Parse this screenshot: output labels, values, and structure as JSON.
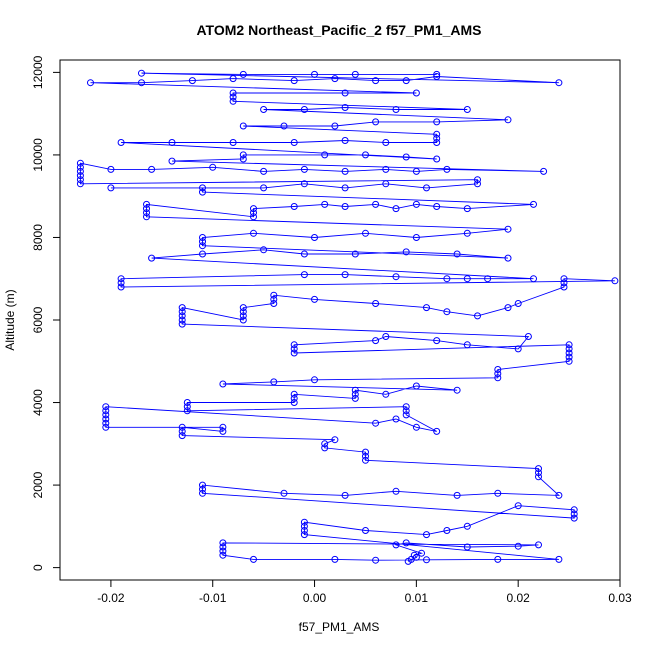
{
  "chart_data": {
    "type": "scatter",
    "title": "ATOM2 Northeast_Pacific_2 f57_PM1_AMS",
    "xlabel": "f57_PM1_AMS",
    "ylabel": "Altitude (m)",
    "xlim": [
      -0.025,
      0.03
    ],
    "ylim": [
      -300,
      12300
    ],
    "x_ticks": [
      -0.02,
      -0.01,
      0.0,
      0.01,
      0.02,
      0.03
    ],
    "x_tick_labels": [
      "-0.02",
      "-0.01",
      "0.00",
      "0.01",
      "0.02",
      "0.03"
    ],
    "y_ticks": [
      0,
      2000,
      4000,
      6000,
      8000,
      10000,
      12000
    ],
    "y_tick_labels": [
      "0",
      "2000",
      "4000",
      "6000",
      "8000",
      "10000",
      "12000"
    ],
    "grid": false,
    "marker": "open-circle",
    "color": "#0000ff",
    "series": [
      {
        "values": [
          [
            0.0092,
            150
          ],
          [
            0.0095,
            200
          ],
          [
            0.01,
            250
          ],
          [
            0.0098,
            300
          ],
          [
            0.0105,
            350
          ],
          [
            0.008,
            550
          ],
          [
            0.009,
            600
          ],
          [
            0.015,
            500
          ],
          [
            0.02,
            520
          ],
          [
            0.022,
            550
          ],
          [
            -0.009,
            600
          ],
          [
            -0.009,
            500
          ],
          [
            -0.009,
            400
          ],
          [
            -0.009,
            300
          ],
          [
            -0.006,
            200
          ],
          [
            0.002,
            200
          ],
          [
            0.006,
            180
          ],
          [
            0.011,
            190
          ],
          [
            0.018,
            200
          ],
          [
            0.024,
            200
          ],
          [
            -0.001,
            800
          ],
          [
            -0.001,
            900
          ],
          [
            -0.001,
            1000
          ],
          [
            -0.001,
            1100
          ],
          [
            0.005,
            900
          ],
          [
            0.011,
            800
          ],
          [
            0.013,
            900
          ],
          [
            0.015,
            1000
          ],
          [
            0.02,
            1500
          ],
          [
            0.0255,
            1400
          ],
          [
            0.0255,
            1300
          ],
          [
            0.0255,
            1200
          ],
          [
            -0.011,
            1800
          ],
          [
            -0.011,
            1900
          ],
          [
            -0.011,
            2000
          ],
          [
            -0.003,
            1800
          ],
          [
            0.003,
            1750
          ],
          [
            0.008,
            1850
          ],
          [
            0.014,
            1750
          ],
          [
            0.018,
            1800
          ],
          [
            0.024,
            1750
          ],
          [
            0.022,
            2200
          ],
          [
            0.022,
            2300
          ],
          [
            0.022,
            2400
          ],
          [
            0.005,
            2600
          ],
          [
            0.005,
            2700
          ],
          [
            0.005,
            2800
          ],
          [
            0.001,
            2900
          ],
          [
            0.001,
            3000
          ],
          [
            0.002,
            3100
          ],
          [
            -0.013,
            3200
          ],
          [
            -0.013,
            3300
          ],
          [
            -0.013,
            3400
          ],
          [
            -0.009,
            3300
          ],
          [
            -0.009,
            3400
          ],
          [
            -0.0205,
            3400
          ],
          [
            -0.0205,
            3500
          ],
          [
            -0.0205,
            3600
          ],
          [
            -0.0205,
            3700
          ],
          [
            -0.0205,
            3800
          ],
          [
            -0.0205,
            3900
          ],
          [
            0.006,
            3500
          ],
          [
            0.008,
            3600
          ],
          [
            0.01,
            3400
          ],
          [
            0.012,
            3300
          ],
          [
            0.009,
            3700
          ],
          [
            0.009,
            3800
          ],
          [
            0.009,
            3900
          ],
          [
            -0.0125,
            3800
          ],
          [
            -0.0125,
            3900
          ],
          [
            -0.0125,
            4000
          ],
          [
            -0.002,
            4000
          ],
          [
            -0.002,
            4100
          ],
          [
            -0.002,
            4200
          ],
          [
            0.004,
            4100
          ],
          [
            0.004,
            4200
          ],
          [
            0.004,
            4300
          ],
          [
            0.007,
            4200
          ],
          [
            0.01,
            4400
          ],
          [
            0.014,
            4300
          ],
          [
            -0.009,
            4450
          ],
          [
            -0.004,
            4500
          ],
          [
            0.0,
            4550
          ],
          [
            0.018,
            4600
          ],
          [
            0.018,
            4700
          ],
          [
            0.018,
            4800
          ],
          [
            0.025,
            5000
          ],
          [
            0.025,
            5100
          ],
          [
            0.025,
            5200
          ],
          [
            0.025,
            5300
          ],
          [
            0.025,
            5400
          ],
          [
            -0.002,
            5200
          ],
          [
            -0.002,
            5300
          ],
          [
            -0.002,
            5400
          ],
          [
            0.006,
            5500
          ],
          [
            0.007,
            5600
          ],
          [
            0.012,
            5500
          ],
          [
            0.015,
            5400
          ],
          [
            0.02,
            5300
          ],
          [
            0.021,
            5600
          ],
          [
            -0.013,
            5900
          ],
          [
            -0.013,
            6000
          ],
          [
            -0.013,
            6100
          ],
          [
            -0.013,
            6200
          ],
          [
            -0.013,
            6300
          ],
          [
            -0.007,
            6000
          ],
          [
            -0.007,
            6100
          ],
          [
            -0.007,
            6200
          ],
          [
            -0.007,
            6300
          ],
          [
            -0.004,
            6400
          ],
          [
            -0.004,
            6500
          ],
          [
            -0.004,
            6600
          ],
          [
            0.0,
            6500
          ],
          [
            0.006,
            6400
          ],
          [
            0.011,
            6300
          ],
          [
            0.013,
            6200
          ],
          [
            0.016,
            6100
          ],
          [
            0.019,
            6300
          ],
          [
            0.02,
            6400
          ],
          [
            0.0245,
            6800
          ],
          [
            0.0245,
            6900
          ],
          [
            0.0245,
            7000
          ],
          [
            0.0295,
            6950
          ],
          [
            -0.019,
            6800
          ],
          [
            -0.019,
            6900
          ],
          [
            -0.019,
            7000
          ],
          [
            -0.001,
            7100
          ],
          [
            0.003,
            7100
          ],
          [
            0.008,
            7050
          ],
          [
            0.013,
            7000
          ],
          [
            0.015,
            7000
          ],
          [
            0.017,
            7000
          ],
          [
            0.0215,
            7000
          ],
          [
            -0.016,
            7500
          ],
          [
            -0.011,
            7600
          ],
          [
            -0.005,
            7700
          ],
          [
            -0.001,
            7600
          ],
          [
            0.004,
            7600
          ],
          [
            0.009,
            7650
          ],
          [
            0.014,
            7600
          ],
          [
            0.019,
            7500
          ],
          [
            -0.011,
            7800
          ],
          [
            -0.011,
            7900
          ],
          [
            -0.011,
            8000
          ],
          [
            -0.006,
            8100
          ],
          [
            0.0,
            8000
          ],
          [
            0.005,
            8100
          ],
          [
            0.01,
            8000
          ],
          [
            0.015,
            8100
          ],
          [
            0.019,
            8200
          ],
          [
            -0.0165,
            8500
          ],
          [
            -0.0165,
            8600
          ],
          [
            -0.0165,
            8700
          ],
          [
            -0.0165,
            8800
          ],
          [
            -0.006,
            8500
          ],
          [
            -0.006,
            8600
          ],
          [
            -0.006,
            8700
          ],
          [
            -0.002,
            8750
          ],
          [
            0.001,
            8800
          ],
          [
            0.003,
            8750
          ],
          [
            0.006,
            8800
          ],
          [
            0.008,
            8700
          ],
          [
            0.01,
            8800
          ],
          [
            0.012,
            8750
          ],
          [
            0.015,
            8700
          ],
          [
            0.0215,
            8800
          ],
          [
            -0.011,
            9100
          ],
          [
            -0.011,
            9200
          ],
          [
            -0.02,
            9200
          ],
          [
            -0.005,
            9200
          ],
          [
            -0.001,
            9300
          ],
          [
            0.003,
            9200
          ],
          [
            0.007,
            9300
          ],
          [
            0.011,
            9200
          ],
          [
            0.016,
            9300
          ],
          [
            0.016,
            9400
          ],
          [
            -0.023,
            9300
          ],
          [
            -0.023,
            9400
          ],
          [
            -0.023,
            9500
          ],
          [
            -0.023,
            9600
          ],
          [
            -0.023,
            9700
          ],
          [
            -0.023,
            9800
          ],
          [
            -0.02,
            9650
          ],
          [
            -0.016,
            9650
          ],
          [
            -0.01,
            9700
          ],
          [
            -0.005,
            9600
          ],
          [
            -0.001,
            9650
          ],
          [
            0.003,
            9600
          ],
          [
            0.007,
            9650
          ],
          [
            0.01,
            9600
          ],
          [
            0.013,
            9650
          ],
          [
            0.0225,
            9600
          ],
          [
            -0.014,
            9850
          ],
          [
            -0.007,
            9900
          ],
          [
            -0.007,
            10000
          ],
          [
            0.001,
            10000
          ],
          [
            0.005,
            10000
          ],
          [
            0.009,
            9950
          ],
          [
            0.012,
            9900
          ],
          [
            -0.019,
            10300
          ],
          [
            -0.014,
            10300
          ],
          [
            -0.008,
            10300
          ],
          [
            -0.002,
            10300
          ],
          [
            0.003,
            10350
          ],
          [
            0.007,
            10300
          ],
          [
            0.012,
            10300
          ],
          [
            0.012,
            10400
          ],
          [
            0.012,
            10500
          ],
          [
            -0.007,
            10700
          ],
          [
            -0.003,
            10700
          ],
          [
            0.002,
            10700
          ],
          [
            0.006,
            10800
          ],
          [
            0.012,
            10800
          ],
          [
            0.019,
            10850
          ],
          [
            -0.005,
            11100
          ],
          [
            -0.001,
            11100
          ],
          [
            0.003,
            11150
          ],
          [
            0.008,
            11100
          ],
          [
            0.015,
            11100
          ],
          [
            -0.008,
            11300
          ],
          [
            -0.008,
            11400
          ],
          [
            -0.008,
            11500
          ],
          [
            0.003,
            11500
          ],
          [
            0.01,
            11500
          ],
          [
            -0.022,
            11750
          ],
          [
            -0.017,
            11750
          ],
          [
            -0.012,
            11800
          ],
          [
            -0.008,
            11850
          ],
          [
            -0.002,
            11800
          ],
          [
            0.002,
            11850
          ],
          [
            0.006,
            11800
          ],
          [
            0.009,
            11800
          ],
          [
            0.012,
            11900
          ],
          [
            0.024,
            11750
          ],
          [
            -0.017,
            11980
          ],
          [
            -0.007,
            11950
          ],
          [
            0.0,
            11950
          ],
          [
            0.004,
            11950
          ],
          [
            0.012,
            11950
          ]
        ]
      }
    ]
  }
}
